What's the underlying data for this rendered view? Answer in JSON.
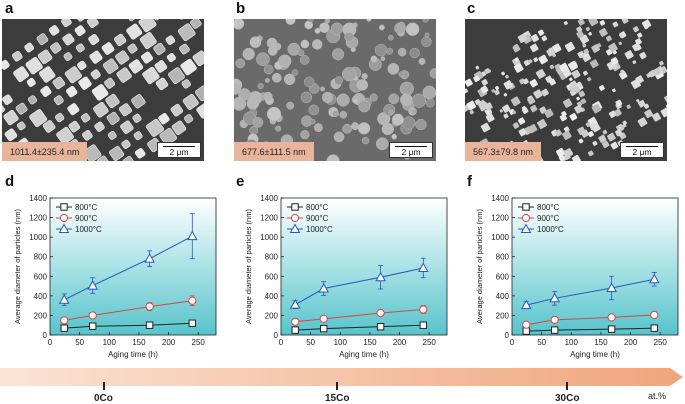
{
  "panels": [
    {
      "letter": "a",
      "sem_label": "1011.4±235.4 nm",
      "scale": "2 μm",
      "style": "cubes"
    },
    {
      "letter": "b",
      "sem_label": "677.6±111.5 nm",
      "scale": "2 μm",
      "style": "spheres"
    },
    {
      "letter": "c",
      "sem_label": "567.3±79.8 nm",
      "scale": "2 μm",
      "style": "small"
    }
  ],
  "chart_data": [
    {
      "letter": "d",
      "type": "line",
      "xlabel": "Aging time (h)",
      "ylabel": "Average diameter of particles (nm)",
      "xlim": [
        0,
        280
      ],
      "ylim": [
        0,
        1400
      ],
      "xticks": [
        0,
        50,
        100,
        150,
        200,
        250
      ],
      "yticks": [
        0,
        200,
        400,
        600,
        800,
        1000,
        1200,
        1400
      ],
      "legend_position": "top-left",
      "series": [
        {
          "name": "800°C",
          "marker": "square",
          "color": "#222222",
          "x": [
            24,
            72,
            168,
            240
          ],
          "y": [
            70,
            90,
            100,
            120
          ],
          "err": [
            15,
            15,
            15,
            15
          ]
        },
        {
          "name": "900°C",
          "marker": "circle",
          "color": "#d94545",
          "x": [
            24,
            72,
            168,
            240
          ],
          "y": [
            150,
            200,
            290,
            350
          ],
          "err": [
            20,
            30,
            40,
            50
          ]
        },
        {
          "name": "1000°C",
          "marker": "triangle",
          "color": "#2a57b8",
          "x": [
            24,
            72,
            168,
            240
          ],
          "y": [
            360,
            505,
            780,
            1010
          ],
          "err": [
            60,
            80,
            80,
            230
          ]
        }
      ]
    },
    {
      "letter": "e",
      "type": "line",
      "xlabel": "Aging time (h)",
      "ylabel": "Average diameter of particles (nm)",
      "xlim": [
        0,
        280
      ],
      "ylim": [
        0,
        1400
      ],
      "xticks": [
        0,
        50,
        100,
        150,
        200,
        250
      ],
      "yticks": [
        0,
        200,
        400,
        600,
        800,
        1000,
        1200,
        1400
      ],
      "legend_position": "top-left",
      "series": [
        {
          "name": "800°C",
          "marker": "square",
          "color": "#222222",
          "x": [
            24,
            72,
            168,
            240
          ],
          "y": [
            50,
            65,
            85,
            100
          ],
          "err": [
            10,
            10,
            10,
            12
          ]
        },
        {
          "name": "900°C",
          "marker": "circle",
          "color": "#d94545",
          "x": [
            24,
            72,
            168,
            240
          ],
          "y": [
            135,
            165,
            225,
            260
          ],
          "err": [
            15,
            20,
            25,
            40
          ]
        },
        {
          "name": "1000°C",
          "marker": "triangle",
          "color": "#2a57b8",
          "x": [
            24,
            72,
            168,
            240
          ],
          "y": [
            310,
            475,
            590,
            685
          ],
          "err": [
            40,
            70,
            120,
            100
          ]
        }
      ]
    },
    {
      "letter": "f",
      "type": "line",
      "xlabel": "Aging time (h)",
      "ylabel": "Average diameter of particles (nm)",
      "xlim": [
        0,
        280
      ],
      "ylim": [
        0,
        1400
      ],
      "xticks": [
        0,
        50,
        100,
        150,
        200,
        250
      ],
      "yticks": [
        0,
        200,
        400,
        600,
        800,
        1000,
        1200,
        1400
      ],
      "legend_position": "top-left",
      "series": [
        {
          "name": "800°C",
          "marker": "square",
          "color": "#222222",
          "x": [
            24,
            72,
            168,
            240
          ],
          "y": [
            40,
            50,
            60,
            70
          ],
          "err": [
            8,
            8,
            8,
            10
          ]
        },
        {
          "name": "900°C",
          "marker": "circle",
          "color": "#d94545",
          "x": [
            24,
            72,
            168,
            240
          ],
          "y": [
            105,
            155,
            180,
            205
          ],
          "err": [
            15,
            15,
            20,
            20
          ]
        },
        {
          "name": "1000°C",
          "marker": "triangle",
          "color": "#2a57b8",
          "x": [
            24,
            72,
            168,
            240
          ],
          "y": [
            305,
            375,
            480,
            570
          ],
          "err": [
            35,
            70,
            120,
            70
          ]
        }
      ]
    }
  ],
  "composition_axis": {
    "labels": [
      "0Co",
      "15Co",
      "30Co"
    ],
    "unit": "at.%",
    "arrow_color": "#f2b694"
  },
  "colors": {
    "chart_bg_top": "#ffffff",
    "chart_bg_bottom": "#56c4cc"
  }
}
